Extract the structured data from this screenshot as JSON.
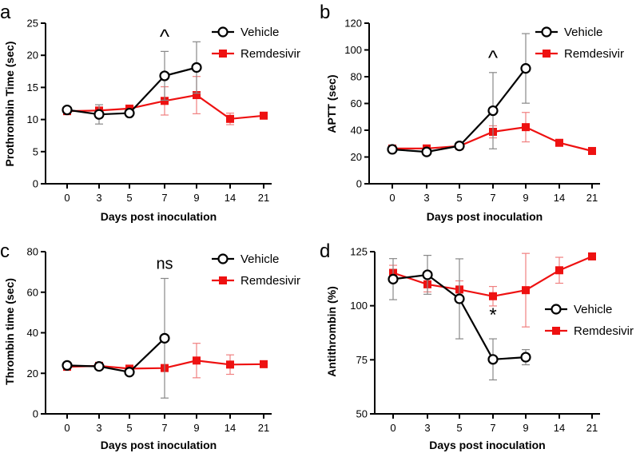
{
  "figure": {
    "colors": {
      "vehicle": "#000000",
      "remdesivir": "#ee1111",
      "error_vehicle": "#888888",
      "error_remdesivir": "#f08080"
    }
  },
  "chart_data": [
    {
      "panel": "a",
      "type": "line",
      "title": "",
      "xlabel": "Days post inoculation",
      "ylabel": "Prothrombin  Time (sec)",
      "categories": [
        "0",
        "3",
        "5",
        "7",
        "9",
        "14",
        "21"
      ],
      "ylim": [
        0,
        25
      ],
      "yticks": [
        0,
        5,
        10,
        15,
        20,
        25
      ],
      "legend_position": "top-right",
      "annotation": {
        "text": "^",
        "category": "7"
      },
      "series": [
        {
          "name": "Vehicle",
          "marker": "open-circle",
          "values": [
            11.5,
            10.8,
            11.0,
            16.8,
            18.1,
            null,
            null
          ],
          "errors": [
            0.3,
            1.5,
            0.4,
            3.8,
            4.0,
            null,
            null
          ]
        },
        {
          "name": "Remdesivir",
          "marker": "filled-square",
          "values": [
            11.3,
            11.4,
            11.7,
            12.9,
            13.8,
            10.1,
            10.6
          ],
          "errors": [
            0.3,
            0.4,
            0.3,
            2.2,
            2.9,
            0.9,
            0.2
          ]
        }
      ]
    },
    {
      "panel": "b",
      "type": "line",
      "title": "",
      "xlabel": "Days post inoculation",
      "ylabel": "APTT (sec)",
      "categories": [
        "0",
        "3",
        "5",
        "7",
        "9",
        "14",
        "21"
      ],
      "ylim": [
        0,
        120
      ],
      "yticks": [
        0,
        20,
        40,
        60,
        80,
        100,
        120
      ],
      "legend_position": "top-right",
      "annotation": {
        "text": "^",
        "category": "7"
      },
      "series": [
        {
          "name": "Vehicle",
          "marker": "open-circle",
          "values": [
            25.7,
            23.8,
            28.3,
            54.6,
            86.2,
            null,
            null
          ],
          "errors": [
            1.5,
            1.2,
            1.5,
            28.5,
            26.0,
            null,
            null
          ]
        },
        {
          "name": "Remdesivir",
          "marker": "filled-square",
          "values": [
            26.3,
            26.4,
            28.2,
            38.8,
            42.3,
            30.6,
            24.5
          ],
          "errors": [
            1.2,
            1.0,
            1.0,
            4.5,
            11.0,
            1.5,
            1.0
          ]
        }
      ]
    },
    {
      "panel": "c",
      "type": "line",
      "title": "",
      "xlabel": "Days post inoculation",
      "ylabel": "Thrombin time (sec)",
      "categories": [
        "0",
        "3",
        "5",
        "7",
        "9",
        "14",
        "21"
      ],
      "ylim": [
        0,
        80
      ],
      "yticks": [
        0,
        20,
        40,
        60,
        80
      ],
      "legend_position": "top-right",
      "annotation": {
        "text": "ns",
        "category": "7"
      },
      "series": [
        {
          "name": "Vehicle",
          "marker": "open-circle",
          "values": [
            23.9,
            23.4,
            20.6,
            37.3,
            null,
            null,
            null
          ],
          "errors": [
            0.8,
            1.0,
            1.0,
            29.5,
            null,
            null,
            null
          ]
        },
        {
          "name": "Remdesivir",
          "marker": "filled-square",
          "values": [
            23.2,
            23.7,
            22.3,
            22.6,
            26.3,
            24.3,
            24.5
          ],
          "errors": [
            0.5,
            0.8,
            1.0,
            0.8,
            8.5,
            4.8,
            1.5
          ]
        }
      ]
    },
    {
      "panel": "d",
      "type": "line",
      "title": "",
      "xlabel": "Days post inoculation",
      "ylabel": "Antithrombin (%)",
      "categories": [
        "0",
        "3",
        "5",
        "7",
        "9",
        "14",
        "21"
      ],
      "ylim": [
        50,
        125
      ],
      "yticks": [
        50,
        75,
        100,
        125
      ],
      "legend_position": "right",
      "annotation": {
        "text": "*",
        "category": "7"
      },
      "series": [
        {
          "name": "Vehicle",
          "marker": "open-circle",
          "values": [
            112.3,
            114.3,
            103.2,
            75.2,
            76.2,
            null,
            null
          ],
          "errors": [
            9.5,
            9.0,
            18.5,
            9.5,
            3.5,
            null,
            null
          ]
        },
        {
          "name": "Remdesivir",
          "marker": "filled-square",
          "values": [
            115.2,
            109.9,
            107.5,
            104.4,
            107.2,
            116.4,
            122.8
          ],
          "errors": [
            3.5,
            3.5,
            4.0,
            4.5,
            17.0,
            6.0,
            1.5
          ]
        }
      ]
    }
  ]
}
